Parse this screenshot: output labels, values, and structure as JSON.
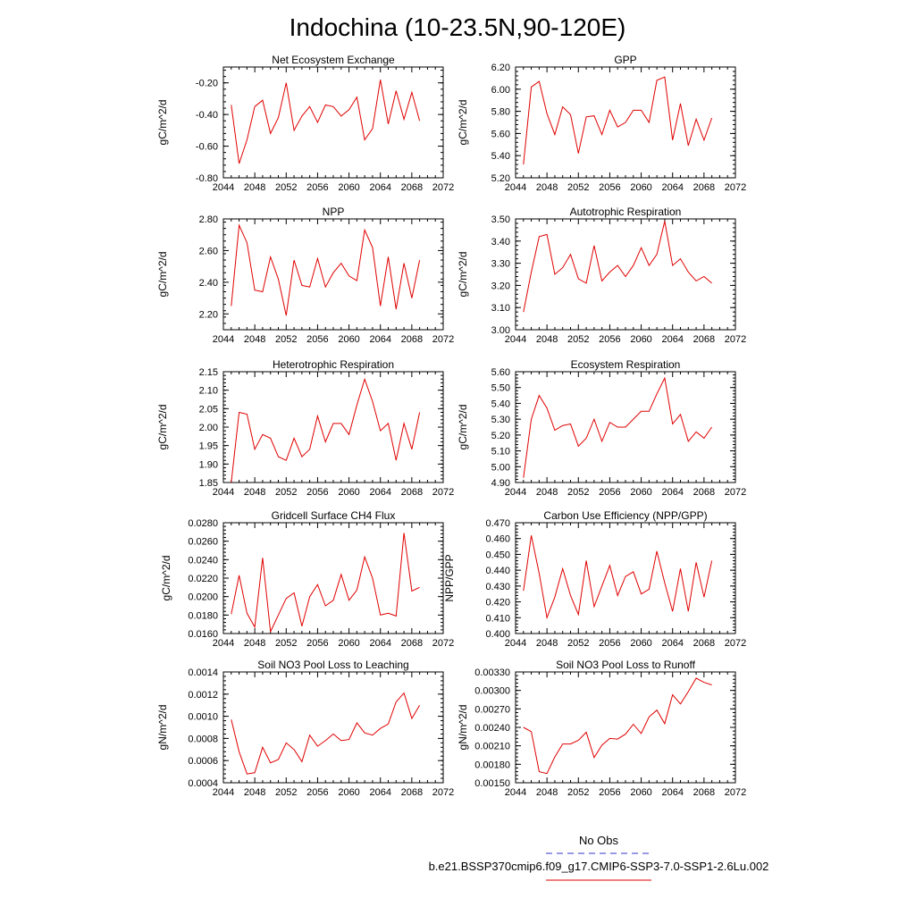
{
  "figure": {
    "title": "Indochina (10-23.5N,90-120E)"
  },
  "legend": [
    {
      "label": "No Obs",
      "color": "#3333cc",
      "dash": true
    },
    {
      "label": "b.e21.BSSP370cmip6.f09_g17.CMIP6-SSP3-7.0-SSP1-2.6Lu.002",
      "color": "#e00000",
      "dash": false
    }
  ],
  "chart_data": [
    {
      "type": "line",
      "title": "Net Ecosystem Exchange",
      "ylabel": "gC/m^2/d",
      "xlim": [
        2044,
        2072
      ],
      "xticks": [
        2044,
        2048,
        2052,
        2056,
        2060,
        2064,
        2068,
        2072
      ],
      "ylim": [
        -0.8,
        -0.1
      ],
      "yticks": [
        -0.8,
        -0.6,
        -0.4,
        -0.2
      ],
      "ydecimals": 2,
      "series": [
        {
          "color": "#e00000",
          "x": [
            2045,
            2046,
            2047,
            2048,
            2049,
            2050,
            2051,
            2052,
            2053,
            2054,
            2055,
            2056,
            2057,
            2058,
            2059,
            2060,
            2061,
            2062,
            2063,
            2064,
            2065,
            2066,
            2067,
            2068,
            2069
          ],
          "y": [
            -0.34,
            -0.71,
            -0.56,
            -0.35,
            -0.31,
            -0.52,
            -0.42,
            -0.2,
            -0.5,
            -0.41,
            -0.35,
            -0.45,
            -0.34,
            -0.35,
            -0.41,
            -0.37,
            -0.29,
            -0.56,
            -0.49,
            -0.18,
            -0.46,
            -0.25,
            -0.43,
            -0.26,
            -0.44
          ]
        }
      ]
    },
    {
      "type": "line",
      "title": "GPP",
      "ylabel": "gC/m^2/d",
      "xlim": [
        2044,
        2072
      ],
      "xticks": [
        2044,
        2048,
        2052,
        2056,
        2060,
        2064,
        2068,
        2072
      ],
      "ylim": [
        5.2,
        6.2
      ],
      "yticks": [
        5.2,
        5.4,
        5.6,
        5.8,
        6.0,
        6.2
      ],
      "ydecimals": 2,
      "series": [
        {
          "color": "#e00000",
          "x": [
            2045,
            2046,
            2047,
            2048,
            2049,
            2050,
            2051,
            2052,
            2053,
            2054,
            2055,
            2056,
            2057,
            2058,
            2059,
            2060,
            2061,
            2062,
            2063,
            2064,
            2065,
            2066,
            2067,
            2068,
            2069
          ],
          "y": [
            5.32,
            6.02,
            6.07,
            5.78,
            5.59,
            5.84,
            5.77,
            5.42,
            5.75,
            5.76,
            5.59,
            5.81,
            5.66,
            5.7,
            5.81,
            5.81,
            5.7,
            6.08,
            6.11,
            5.54,
            5.87,
            5.49,
            5.73,
            5.54,
            5.74
          ]
        }
      ]
    },
    {
      "type": "line",
      "title": "NPP",
      "ylabel": "gC/m^2/d",
      "xlim": [
        2044,
        2072
      ],
      "xticks": [
        2044,
        2048,
        2052,
        2056,
        2060,
        2064,
        2068,
        2072
      ],
      "ylim": [
        2.1,
        2.8
      ],
      "yticks": [
        2.2,
        2.4,
        2.6,
        2.8
      ],
      "ydecimals": 2,
      "series": [
        {
          "color": "#e00000",
          "x": [
            2045,
            2046,
            2047,
            2048,
            2049,
            2050,
            2051,
            2052,
            2053,
            2054,
            2055,
            2056,
            2057,
            2058,
            2059,
            2060,
            2061,
            2062,
            2063,
            2064,
            2065,
            2066,
            2067,
            2068,
            2069
          ],
          "y": [
            2.25,
            2.76,
            2.65,
            2.35,
            2.34,
            2.56,
            2.42,
            2.19,
            2.54,
            2.38,
            2.37,
            2.55,
            2.37,
            2.46,
            2.52,
            2.44,
            2.41,
            2.73,
            2.62,
            2.25,
            2.56,
            2.23,
            2.52,
            2.3,
            2.54
          ]
        }
      ]
    },
    {
      "type": "line",
      "title": "Autotrophic Respiration",
      "ylabel": "gC/m^2/d",
      "xlim": [
        2044,
        2072
      ],
      "xticks": [
        2044,
        2048,
        2052,
        2056,
        2060,
        2064,
        2068,
        2072
      ],
      "ylim": [
        3.0,
        3.5
      ],
      "yticks": [
        3.0,
        3.1,
        3.2,
        3.3,
        3.4,
        3.5
      ],
      "ydecimals": 2,
      "series": [
        {
          "color": "#e00000",
          "x": [
            2045,
            2046,
            2047,
            2048,
            2049,
            2050,
            2051,
            2052,
            2053,
            2054,
            2055,
            2056,
            2057,
            2058,
            2059,
            2060,
            2061,
            2062,
            2063,
            2064,
            2065,
            2066,
            2067,
            2068,
            2069
          ],
          "y": [
            3.08,
            3.26,
            3.42,
            3.43,
            3.25,
            3.28,
            3.34,
            3.23,
            3.21,
            3.38,
            3.22,
            3.26,
            3.29,
            3.24,
            3.29,
            3.37,
            3.29,
            3.34,
            3.49,
            3.29,
            3.32,
            3.26,
            3.22,
            3.24,
            3.21
          ]
        }
      ]
    },
    {
      "type": "line",
      "title": "Heterotrophic Respiration",
      "ylabel": "gC/m^2/d",
      "xlim": [
        2044,
        2072
      ],
      "xticks": [
        2044,
        2048,
        2052,
        2056,
        2060,
        2064,
        2068,
        2072
      ],
      "ylim": [
        1.85,
        2.15
      ],
      "yticks": [
        1.85,
        1.9,
        1.95,
        2.0,
        2.05,
        2.1,
        2.15
      ],
      "ydecimals": 2,
      "series": [
        {
          "color": "#e00000",
          "x": [
            2045,
            2046,
            2047,
            2048,
            2049,
            2050,
            2051,
            2052,
            2053,
            2054,
            2055,
            2056,
            2057,
            2058,
            2059,
            2060,
            2061,
            2062,
            2063,
            2064,
            2065,
            2066,
            2067,
            2068,
            2069
          ],
          "y": [
            1.85,
            2.04,
            2.035,
            1.94,
            1.98,
            1.97,
            1.92,
            1.91,
            1.97,
            1.92,
            1.94,
            2.03,
            1.96,
            2.01,
            2.01,
            1.98,
            2.06,
            2.13,
            2.07,
            1.99,
            2.01,
            1.91,
            2.01,
            1.94,
            2.04
          ]
        }
      ]
    },
    {
      "type": "line",
      "title": "Ecosystem Respiration",
      "ylabel": "gC/m^2/d",
      "xlim": [
        2044,
        2072
      ],
      "xticks": [
        2044,
        2048,
        2052,
        2056,
        2060,
        2064,
        2068,
        2072
      ],
      "ylim": [
        4.9,
        5.6
      ],
      "yticks": [
        4.9,
        5.0,
        5.1,
        5.2,
        5.3,
        5.4,
        5.5,
        5.6
      ],
      "ydecimals": 2,
      "series": [
        {
          "color": "#e00000",
          "x": [
            2045,
            2046,
            2047,
            2048,
            2049,
            2050,
            2051,
            2052,
            2053,
            2054,
            2055,
            2056,
            2057,
            2058,
            2059,
            2060,
            2061,
            2062,
            2063,
            2064,
            2065,
            2066,
            2067,
            2068,
            2069
          ],
          "y": [
            4.93,
            5.3,
            5.45,
            5.37,
            5.23,
            5.26,
            5.27,
            5.13,
            5.18,
            5.3,
            5.16,
            5.28,
            5.25,
            5.25,
            5.3,
            5.35,
            5.35,
            5.46,
            5.56,
            5.27,
            5.33,
            5.16,
            5.22,
            5.18,
            5.25
          ]
        }
      ]
    },
    {
      "type": "line",
      "title": "Gridcell Surface CH4 Flux",
      "ylabel": "gC/m^2/d",
      "xlim": [
        2044,
        2072
      ],
      "xticks": [
        2044,
        2048,
        2052,
        2056,
        2060,
        2064,
        2068,
        2072
      ],
      "ylim": [
        0.016,
        0.028
      ],
      "yticks": [
        0.016,
        0.018,
        0.02,
        0.022,
        0.024,
        0.026,
        0.028
      ],
      "ydecimals": 4,
      "series": [
        {
          "color": "#e00000",
          "x": [
            2045,
            2046,
            2047,
            2048,
            2049,
            2050,
            2051,
            2052,
            2053,
            2054,
            2055,
            2056,
            2057,
            2058,
            2059,
            2060,
            2061,
            2062,
            2063,
            2064,
            2065,
            2066,
            2067,
            2068,
            2069
          ],
          "y": [
            0.0181,
            0.0223,
            0.0182,
            0.0167,
            0.0242,
            0.0162,
            0.018,
            0.0198,
            0.0204,
            0.0168,
            0.02,
            0.0213,
            0.019,
            0.0196,
            0.0224,
            0.0196,
            0.0207,
            0.0243,
            0.022,
            0.018,
            0.0182,
            0.0179,
            0.0269,
            0.0206,
            0.021
          ]
        }
      ]
    },
    {
      "type": "line",
      "title": "Carbon Use Efficiency (NPP/GPP)",
      "ylabel": "NPP/GPP",
      "xlim": [
        2044,
        2072
      ],
      "xticks": [
        2044,
        2048,
        2052,
        2056,
        2060,
        2064,
        2068,
        2072
      ],
      "ylim": [
        0.4,
        0.47
      ],
      "yticks": [
        0.4,
        0.41,
        0.42,
        0.43,
        0.44,
        0.45,
        0.46,
        0.47
      ],
      "ydecimals": 3,
      "series": [
        {
          "color": "#e00000",
          "x": [
            2045,
            2046,
            2047,
            2048,
            2049,
            2050,
            2051,
            2052,
            2053,
            2054,
            2055,
            2056,
            2057,
            2058,
            2059,
            2060,
            2061,
            2062,
            2063,
            2064,
            2065,
            2066,
            2067,
            2068,
            2069
          ],
          "y": [
            0.427,
            0.462,
            0.438,
            0.41,
            0.423,
            0.441,
            0.424,
            0.412,
            0.446,
            0.417,
            0.43,
            0.443,
            0.424,
            0.436,
            0.439,
            0.425,
            0.428,
            0.452,
            0.432,
            0.414,
            0.441,
            0.414,
            0.445,
            0.423,
            0.446
          ]
        }
      ]
    },
    {
      "type": "line",
      "title": "Soil NO3 Pool Loss to Leaching",
      "ylabel": "gN/m^2/d",
      "xlim": [
        2044,
        2072
      ],
      "xticks": [
        2044,
        2048,
        2052,
        2056,
        2060,
        2064,
        2068,
        2072
      ],
      "ylim": [
        0.0004,
        0.0014
      ],
      "yticks": [
        0.0004,
        0.0006,
        0.0008,
        0.001,
        0.0012,
        0.0014
      ],
      "ydecimals": 4,
      "series": [
        {
          "color": "#e00000",
          "x": [
            2045,
            2046,
            2047,
            2048,
            2049,
            2050,
            2051,
            2052,
            2053,
            2054,
            2055,
            2056,
            2057,
            2058,
            2059,
            2060,
            2061,
            2062,
            2063,
            2064,
            2065,
            2066,
            2067,
            2068,
            2069
          ],
          "y": [
            0.00097,
            0.00068,
            0.00048,
            0.00049,
            0.00072,
            0.00058,
            0.00061,
            0.00076,
            0.0007,
            0.00059,
            0.00083,
            0.00073,
            0.00078,
            0.00084,
            0.00078,
            0.00079,
            0.00094,
            0.00085,
            0.00083,
            0.00089,
            0.00093,
            0.00113,
            0.00121,
            0.00098,
            0.0011
          ]
        }
      ]
    },
    {
      "type": "line",
      "title": "Soil NO3 Pool Loss to Runoff",
      "ylabel": "gN/m^2/d",
      "xlim": [
        2044,
        2072
      ],
      "xticks": [
        2044,
        2048,
        2052,
        2056,
        2060,
        2064,
        2068,
        2072
      ],
      "ylim": [
        0.0015,
        0.0033
      ],
      "yticks": [
        0.0015,
        0.0018,
        0.0021,
        0.0024,
        0.0027,
        0.003,
        0.0033
      ],
      "ydecimals": 5,
      "series": [
        {
          "color": "#e00000",
          "x": [
            2045,
            2046,
            2047,
            2048,
            2049,
            2050,
            2051,
            2052,
            2053,
            2054,
            2055,
            2056,
            2057,
            2058,
            2059,
            2060,
            2061,
            2062,
            2063,
            2064,
            2065,
            2066,
            2067,
            2068,
            2069
          ],
          "y": [
            0.0024,
            0.00233,
            0.00168,
            0.00165,
            0.00192,
            0.00213,
            0.00213,
            0.00219,
            0.00232,
            0.00191,
            0.00211,
            0.00222,
            0.00221,
            0.00229,
            0.00245,
            0.0023,
            0.00257,
            0.00268,
            0.00246,
            0.00293,
            0.00278,
            0.00298,
            0.0032,
            0.00313,
            0.00309
          ]
        }
      ]
    }
  ]
}
